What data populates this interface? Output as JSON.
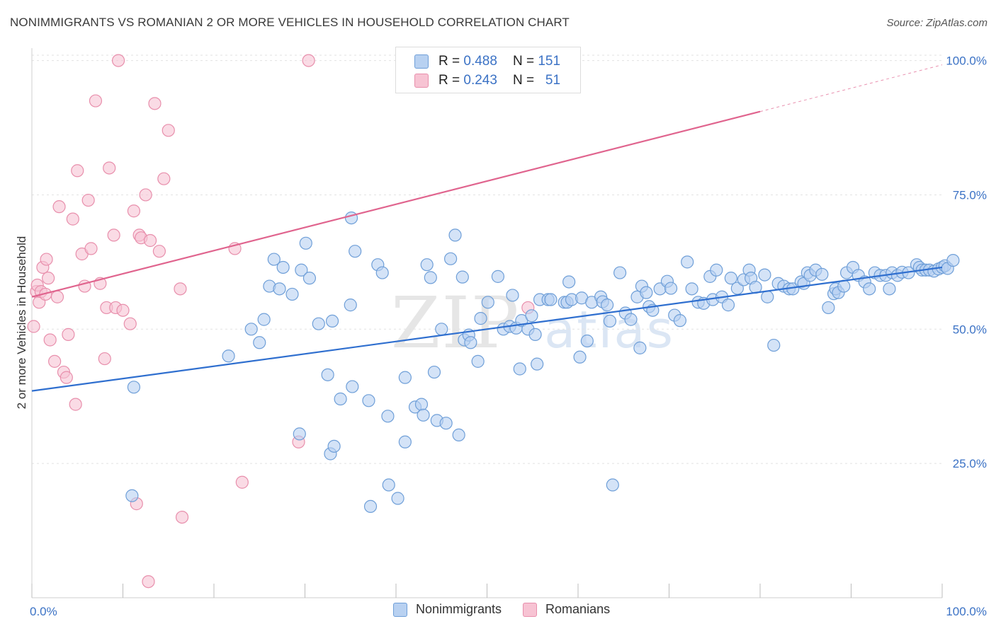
{
  "title": "NONIMMIGRANTS VS ROMANIAN 2 OR MORE VEHICLES IN HOUSEHOLD CORRELATION CHART",
  "source": "Source: ZipAtlas.com",
  "watermark": {
    "zip": "ZIP",
    "atlas": "atlas"
  },
  "colors": {
    "blue_fill": "#b8d1f1",
    "blue_stroke": "#6f9fd8",
    "blue_line": "#2f6fcf",
    "pink_fill": "#f7c3d3",
    "pink_stroke": "#e88fac",
    "pink_line": "#e0648e",
    "tick_text": "#3b72c5",
    "grid": "#e2e2e2"
  },
  "legend": {
    "rows": [
      {
        "r_label": "R =",
        "r_value": "0.488",
        "n_label": "N =",
        "n_value": "151"
      },
      {
        "r_label": "R =",
        "r_value": "0.243",
        "n_label": "N =",
        "n_value": "51"
      }
    ]
  },
  "bottom_legend": [
    "Nonimmigrants",
    "Romanians"
  ],
  "chart_data": {
    "type": "scatter",
    "title": "NONIMMIGRANTS VS ROMANIAN 2 OR MORE VEHICLES IN HOUSEHOLD CORRELATION CHART",
    "xlabel": "",
    "ylabel": "2 or more Vehicles in Household",
    "xlim": [
      0,
      100
    ],
    "ylim": [
      0,
      100
    ],
    "x_tick_labels": [
      "0.0%",
      "100.0%"
    ],
    "y_tick_labels": [
      "25.0%",
      "50.0%",
      "75.0%",
      "100.0%"
    ],
    "y_ticks": [
      25,
      50,
      75,
      100
    ],
    "grid": true,
    "legend_position": "top-center",
    "series": [
      {
        "name": "Nonimmigrants",
        "r": 0.488,
        "n": 151,
        "trend": {
          "x0": 0,
          "y0": 38.5,
          "x1": 100,
          "y1": 61.5
        },
        "points": [
          [
            11.2,
            39.2
          ],
          [
            11.0,
            19.0
          ],
          [
            21.6,
            45.0
          ],
          [
            24.1,
            50.0
          ],
          [
            25.0,
            47.5
          ],
          [
            25.5,
            51.8
          ],
          [
            26.1,
            58.0
          ],
          [
            26.6,
            63.0
          ],
          [
            27.2,
            57.5
          ],
          [
            27.6,
            61.5
          ],
          [
            28.6,
            56.5
          ],
          [
            29.4,
            30.5
          ],
          [
            29.6,
            61.0
          ],
          [
            30.5,
            59.5
          ],
          [
            30.1,
            66.0
          ],
          [
            31.5,
            51.0
          ],
          [
            32.5,
            41.5
          ],
          [
            33.0,
            51.5
          ],
          [
            32.8,
            26.8
          ],
          [
            33.2,
            28.2
          ],
          [
            33.9,
            37.0
          ],
          [
            35.0,
            54.5
          ],
          [
            35.1,
            70.7
          ],
          [
            35.2,
            39.3
          ],
          [
            35.5,
            64.5
          ],
          [
            37.0,
            36.7
          ],
          [
            37.2,
            17.0
          ],
          [
            38.0,
            62.0
          ],
          [
            38.5,
            60.5
          ],
          [
            39.1,
            33.8
          ],
          [
            39.2,
            21.0
          ],
          [
            40.2,
            18.5
          ],
          [
            41.0,
            41.0
          ],
          [
            41.0,
            29.0
          ],
          [
            42.1,
            35.5
          ],
          [
            42.8,
            36.0
          ],
          [
            43.0,
            34.0
          ],
          [
            43.4,
            62.0
          ],
          [
            43.8,
            59.6
          ],
          [
            44.2,
            42.0
          ],
          [
            44.5,
            33.0
          ],
          [
            45.5,
            32.5
          ],
          [
            46.0,
            63.1
          ],
          [
            46.5,
            67.5
          ],
          [
            46.9,
            30.3
          ],
          [
            47.3,
            59.7
          ],
          [
            47.5,
            48.0
          ],
          [
            48.0,
            48.9
          ],
          [
            48.2,
            47.5
          ],
          [
            49.0,
            44.0
          ],
          [
            49.3,
            52.0
          ],
          [
            50.1,
            55.0
          ],
          [
            51.2,
            59.8
          ],
          [
            51.8,
            50.0
          ],
          [
            52.5,
            50.5
          ],
          [
            52.8,
            56.3
          ],
          [
            53.2,
            50.2
          ],
          [
            53.6,
            42.6
          ],
          [
            53.8,
            51.6
          ],
          [
            54.5,
            50.0
          ],
          [
            54.9,
            52.5
          ],
          [
            55.3,
            49.0
          ],
          [
            55.5,
            43.5
          ],
          [
            55.8,
            55.5
          ],
          [
            56.7,
            55.5
          ],
          [
            57.0,
            55.5
          ],
          [
            58.5,
            55.0
          ],
          [
            58.8,
            55.0
          ],
          [
            59.0,
            58.8
          ],
          [
            59.3,
            55.5
          ],
          [
            60.2,
            44.8
          ],
          [
            60.4,
            55.8
          ],
          [
            61.0,
            47.8
          ],
          [
            61.5,
            55.0
          ],
          [
            62.5,
            56.0
          ],
          [
            62.7,
            55.1
          ],
          [
            63.2,
            54.5
          ],
          [
            63.5,
            51.5
          ],
          [
            63.8,
            21.0
          ],
          [
            64.6,
            60.5
          ],
          [
            65.2,
            53.0
          ],
          [
            65.8,
            51.8
          ],
          [
            66.5,
            56.0
          ],
          [
            66.8,
            46.5
          ],
          [
            67.0,
            58.0
          ],
          [
            67.5,
            56.8
          ],
          [
            67.8,
            54.2
          ],
          [
            68.2,
            53.5
          ],
          [
            69.0,
            57.5
          ],
          [
            69.8,
            58.9
          ],
          [
            70.2,
            57.6
          ],
          [
            70.6,
            52.6
          ],
          [
            71.2,
            51.6
          ],
          [
            72.0,
            62.5
          ],
          [
            72.5,
            57.5
          ],
          [
            73.2,
            55.0
          ],
          [
            73.8,
            54.8
          ],
          [
            74.5,
            59.8
          ],
          [
            74.8,
            55.5
          ],
          [
            75.2,
            61.0
          ],
          [
            75.8,
            56.0
          ],
          [
            76.5,
            54.5
          ],
          [
            76.8,
            59.5
          ],
          [
            77.5,
            57.6
          ],
          [
            78.2,
            59.2
          ],
          [
            78.8,
            61.0
          ],
          [
            79.0,
            59.5
          ],
          [
            79.5,
            57.8
          ],
          [
            80.5,
            60.1
          ],
          [
            80.8,
            56.0
          ],
          [
            81.5,
            47.0
          ],
          [
            82.0,
            58.5
          ],
          [
            82.6,
            58.0
          ],
          [
            83.2,
            57.5
          ],
          [
            83.6,
            57.5
          ],
          [
            84.5,
            58.8
          ],
          [
            84.8,
            58.5
          ],
          [
            85.2,
            60.5
          ],
          [
            85.5,
            60.0
          ],
          [
            86.1,
            61.0
          ],
          [
            86.8,
            60.2
          ],
          [
            87.5,
            54.0
          ],
          [
            88.1,
            56.6
          ],
          [
            88.3,
            57.5
          ],
          [
            88.6,
            56.8
          ],
          [
            89.2,
            58.0
          ],
          [
            89.5,
            60.5
          ],
          [
            90.2,
            61.5
          ],
          [
            90.8,
            60.0
          ],
          [
            91.5,
            58.8
          ],
          [
            92.0,
            57.5
          ],
          [
            92.6,
            60.5
          ],
          [
            93.2,
            60.0
          ],
          [
            93.8,
            60.0
          ],
          [
            94.2,
            57.5
          ],
          [
            94.5,
            60.5
          ],
          [
            95.1,
            60.0
          ],
          [
            95.6,
            60.6
          ],
          [
            96.3,
            60.5
          ],
          [
            97.2,
            62.0
          ],
          [
            97.5,
            61.5
          ],
          [
            97.8,
            61.0
          ],
          [
            98.2,
            61.0
          ],
          [
            98.6,
            61.0
          ],
          [
            99.1,
            60.8
          ],
          [
            99.6,
            61.2
          ],
          [
            100.0,
            61.5
          ],
          [
            100.3,
            61.8
          ],
          [
            100.6,
            61.3
          ],
          [
            101.2,
            62.8
          ],
          [
            45.0,
            50.0
          ]
        ]
      },
      {
        "name": "Romanians",
        "r": 0.243,
        "n": 51,
        "trend": {
          "x0": 0,
          "y0": 56.0,
          "x1": 80,
          "y1": 90.5,
          "x_dashed_end": 100,
          "y_dashed_end": 99.2
        },
        "points": [
          [
            0.2,
            50.5
          ],
          [
            0.5,
            57.0
          ],
          [
            0.6,
            58.2
          ],
          [
            0.8,
            55.0
          ],
          [
            1.0,
            57.0
          ],
          [
            1.2,
            61.5
          ],
          [
            1.5,
            56.5
          ],
          [
            1.6,
            63.0
          ],
          [
            1.8,
            59.5
          ],
          [
            2.0,
            48.0
          ],
          [
            2.5,
            44.0
          ],
          [
            2.8,
            56.0
          ],
          [
            3.0,
            72.8
          ],
          [
            3.5,
            42.0
          ],
          [
            3.8,
            41.0
          ],
          [
            4.0,
            49.0
          ],
          [
            4.5,
            70.5
          ],
          [
            4.8,
            36.0
          ],
          [
            5.0,
            79.5
          ],
          [
            5.5,
            64.0
          ],
          [
            5.8,
            58.0
          ],
          [
            6.2,
            74.0
          ],
          [
            6.5,
            65.0
          ],
          [
            7.0,
            92.5
          ],
          [
            7.5,
            58.5
          ],
          [
            8.0,
            44.5
          ],
          [
            8.2,
            54.0
          ],
          [
            8.5,
            80.0
          ],
          [
            9.0,
            67.5
          ],
          [
            9.2,
            54.0
          ],
          [
            9.5,
            100.0
          ],
          [
            10.0,
            53.5
          ],
          [
            10.8,
            51.0
          ],
          [
            11.2,
            72.0
          ],
          [
            11.5,
            17.5
          ],
          [
            11.8,
            67.5
          ],
          [
            12.0,
            67.0
          ],
          [
            12.5,
            75.0
          ],
          [
            12.8,
            3.0
          ],
          [
            13.0,
            66.5
          ],
          [
            13.5,
            92.0
          ],
          [
            14.0,
            64.5
          ],
          [
            14.5,
            78.0
          ],
          [
            15.0,
            87.0
          ],
          [
            16.3,
            57.5
          ],
          [
            16.5,
            15.0
          ],
          [
            22.3,
            65.0
          ],
          [
            23.1,
            21.5
          ],
          [
            29.3,
            29.0
          ],
          [
            30.4,
            100.0
          ],
          [
            54.5,
            54.0
          ]
        ]
      }
    ]
  }
}
